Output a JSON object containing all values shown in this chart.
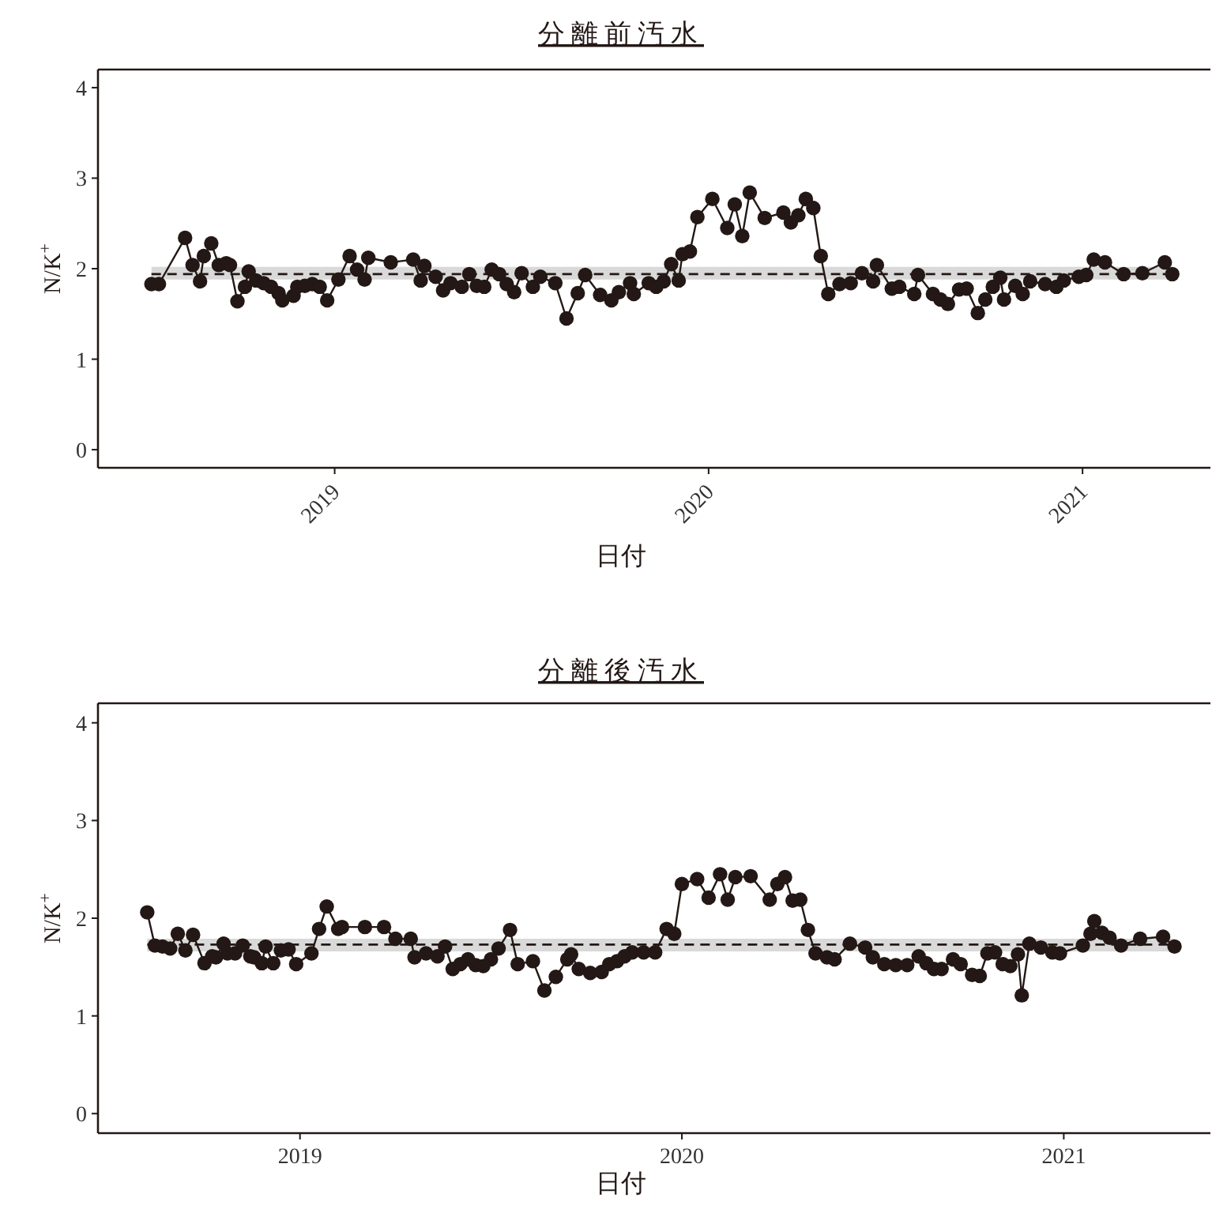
{
  "chart_data": [
    {
      "type": "line",
      "title": "分離前汚水",
      "xlabel": "日付",
      "ylabel": "N/K$^{+}$",
      "xlim": [
        2018.367,
        2021.342
      ],
      "ylim": [
        -0.2,
        4.2
      ],
      "xticks": [
        2019,
        2020,
        2021
      ],
      "yticks": [
        0,
        1,
        2,
        3,
        4
      ],
      "grid": false,
      "marker": "circle",
      "line_style": "solid",
      "bands": [
        {
          "axis": "y",
          "from": 1.88,
          "to": 2.02,
          "color": "#d9d9d9"
        }
      ],
      "ref_lines": [
        {
          "axis": "y",
          "value": 1.94,
          "line_style": "dashed",
          "color": "#231815"
        }
      ],
      "series": [
        {
          "color": "#231815",
          "x": [
            2018.51,
            2018.53,
            2018.6,
            2018.62,
            2018.64,
            2018.65,
            2018.67,
            2018.69,
            2018.71,
            2018.72,
            2018.74,
            2018.76,
            2018.77,
            2018.79,
            2018.81,
            2018.83,
            2018.85,
            2018.86,
            2018.89,
            2018.9,
            2018.92,
            2018.94,
            2018.96,
            2018.98,
            2019.01,
            2019.04,
            2019.06,
            2019.08,
            2019.09,
            2019.15,
            2019.21,
            2019.23,
            2019.24,
            2019.27,
            2019.29,
            2019.31,
            2019.34,
            2019.36,
            2019.38,
            2019.4,
            2019.42,
            2019.44,
            2019.46,
            2019.48,
            2019.5,
            2019.53,
            2019.55,
            2019.59,
            2019.62,
            2019.65,
            2019.67,
            2019.71,
            2019.74,
            2019.76,
            2019.79,
            2019.8,
            2019.84,
            2019.86,
            2019.88,
            2019.9,
            2019.92,
            2019.93,
            2019.95,
            2019.97,
            2020.01,
            2020.05,
            2020.07,
            2020.09,
            2020.11,
            2020.15,
            2020.2,
            2020.22,
            2020.24,
            2020.26,
            2020.28,
            2020.3,
            2020.32,
            2020.35,
            2020.38,
            2020.41,
            2020.44,
            2020.45,
            2020.49,
            2020.51,
            2020.55,
            2020.56,
            2020.6,
            2020.62,
            2020.64,
            2020.67,
            2020.69,
            2020.72,
            2020.74,
            2020.76,
            2020.78,
            2020.79,
            2020.82,
            2020.84,
            2020.86,
            2020.9,
            2020.93,
            2020.95,
            2020.99,
            2021.01,
            2021.03,
            2021.06,
            2021.11,
            2021.16,
            2021.22,
            2021.24
          ],
          "values": [
            1.83,
            1.83,
            2.34,
            2.04,
            1.86,
            2.14,
            2.28,
            2.04,
            2.06,
            2.04,
            1.64,
            1.8,
            1.97,
            1.87,
            1.84,
            1.8,
            1.73,
            1.65,
            1.7,
            1.8,
            1.81,
            1.83,
            1.8,
            1.65,
            1.88,
            2.14,
            1.99,
            1.88,
            2.12,
            2.07,
            2.1,
            1.87,
            2.03,
            1.91,
            1.76,
            1.84,
            1.8,
            1.94,
            1.81,
            1.8,
            1.99,
            1.94,
            1.83,
            1.74,
            1.95,
            1.8,
            1.91,
            1.84,
            1.45,
            1.73,
            1.93,
            1.71,
            1.65,
            1.74,
            1.84,
            1.72,
            1.84,
            1.8,
            1.86,
            2.05,
            1.87,
            2.16,
            2.19,
            2.57,
            2.77,
            2.45,
            2.71,
            2.36,
            2.84,
            2.56,
            2.62,
            2.51,
            2.59,
            2.77,
            2.67,
            2.14,
            1.72,
            1.83,
            1.84,
            1.95,
            1.86,
            2.04,
            1.78,
            1.8,
            1.72,
            1.93,
            1.72,
            1.66,
            1.61,
            1.77,
            1.78,
            1.51,
            1.66,
            1.8,
            1.9,
            1.66,
            1.81,
            1.72,
            1.86,
            1.83,
            1.8,
            1.87,
            1.91,
            1.93,
            2.1,
            2.07,
            1.94,
            1.95,
            2.07,
            1.94
          ]
        }
      ]
    },
    {
      "type": "line",
      "title": "分離後汚水",
      "xlabel": "日付",
      "ylabel": "N/K$^{+}$",
      "xlim": [
        2018.471,
        2021.384
      ],
      "ylim": [
        -0.2,
        4.2
      ],
      "xticks": [
        2019,
        2020,
        2021
      ],
      "yticks": [
        0,
        1,
        2,
        3,
        4
      ],
      "grid": false,
      "marker": "circle",
      "line_style": "solid",
      "bands": [
        {
          "axis": "y",
          "from": 1.66,
          "to": 1.79,
          "color": "#d9d9d9"
        }
      ],
      "ref_lines": [
        {
          "axis": "y",
          "value": 1.73,
          "line_style": "dashed",
          "color": "#231815"
        }
      ],
      "series": [
        {
          "color": "#231815",
          "x": [
            2018.6,
            2018.62,
            2018.64,
            2018.66,
            2018.68,
            2018.7,
            2018.72,
            2018.75,
            2018.77,
            2018.78,
            2018.8,
            2018.81,
            2018.83,
            2018.85,
            2018.87,
            2018.88,
            2018.9,
            2018.91,
            2018.93,
            2018.95,
            2018.97,
            2018.99,
            2019.03,
            2019.05,
            2019.07,
            2019.1,
            2019.11,
            2019.17,
            2019.22,
            2019.25,
            2019.29,
            2019.3,
            2019.33,
            2019.36,
            2019.38,
            2019.4,
            2019.42,
            2019.44,
            2019.46,
            2019.48,
            2019.5,
            2019.52,
            2019.55,
            2019.57,
            2019.61,
            2019.64,
            2019.67,
            2019.7,
            2019.71,
            2019.73,
            2019.76,
            2019.79,
            2019.81,
            2019.83,
            2019.85,
            2019.87,
            2019.9,
            2019.93,
            2019.96,
            2019.98,
            2020.0,
            2020.04,
            2020.07,
            2020.1,
            2020.12,
            2020.14,
            2020.18,
            2020.23,
            2020.25,
            2020.27,
            2020.29,
            2020.31,
            2020.33,
            2020.35,
            2020.38,
            2020.4,
            2020.44,
            2020.48,
            2020.5,
            2020.53,
            2020.56,
            2020.59,
            2020.62,
            2020.64,
            2020.66,
            2020.68,
            2020.71,
            2020.73,
            2020.76,
            2020.78,
            2020.8,
            2020.82,
            2020.84,
            2020.86,
            2020.88,
            2020.89,
            2020.91,
            2020.94,
            2020.97,
            2020.99,
            2021.05,
            2021.07,
            2021.08,
            2021.1,
            2021.12,
            2021.15,
            2021.2,
            2021.26,
            2021.29
          ],
          "values": [
            2.06,
            1.72,
            1.71,
            1.69,
            1.84,
            1.67,
            1.83,
            1.54,
            1.61,
            1.6,
            1.74,
            1.64,
            1.64,
            1.72,
            1.61,
            1.6,
            1.54,
            1.71,
            1.54,
            1.67,
            1.68,
            1.53,
            1.64,
            1.89,
            2.12,
            1.89,
            1.91,
            1.91,
            1.91,
            1.79,
            1.79,
            1.6,
            1.64,
            1.61,
            1.71,
            1.48,
            1.53,
            1.58,
            1.52,
            1.51,
            1.58,
            1.69,
            1.88,
            1.53,
            1.56,
            1.26,
            1.4,
            1.58,
            1.63,
            1.48,
            1.44,
            1.45,
            1.53,
            1.56,
            1.61,
            1.65,
            1.65,
            1.65,
            1.89,
            1.84,
            2.35,
            2.4,
            2.21,
            2.45,
            2.19,
            2.42,
            2.43,
            2.19,
            2.35,
            2.42,
            2.18,
            2.19,
            1.88,
            1.64,
            1.6,
            1.58,
            1.74,
            1.7,
            1.6,
            1.53,
            1.52,
            1.52,
            1.61,
            1.54,
            1.48,
            1.48,
            1.58,
            1.53,
            1.42,
            1.41,
            1.64,
            1.65,
            1.53,
            1.51,
            1.63,
            1.21,
            1.74,
            1.7,
            1.65,
            1.64,
            1.72,
            1.84,
            1.97,
            1.85,
            1.8,
            1.72,
            1.79,
            1.81,
            1.71
          ]
        }
      ]
    }
  ]
}
